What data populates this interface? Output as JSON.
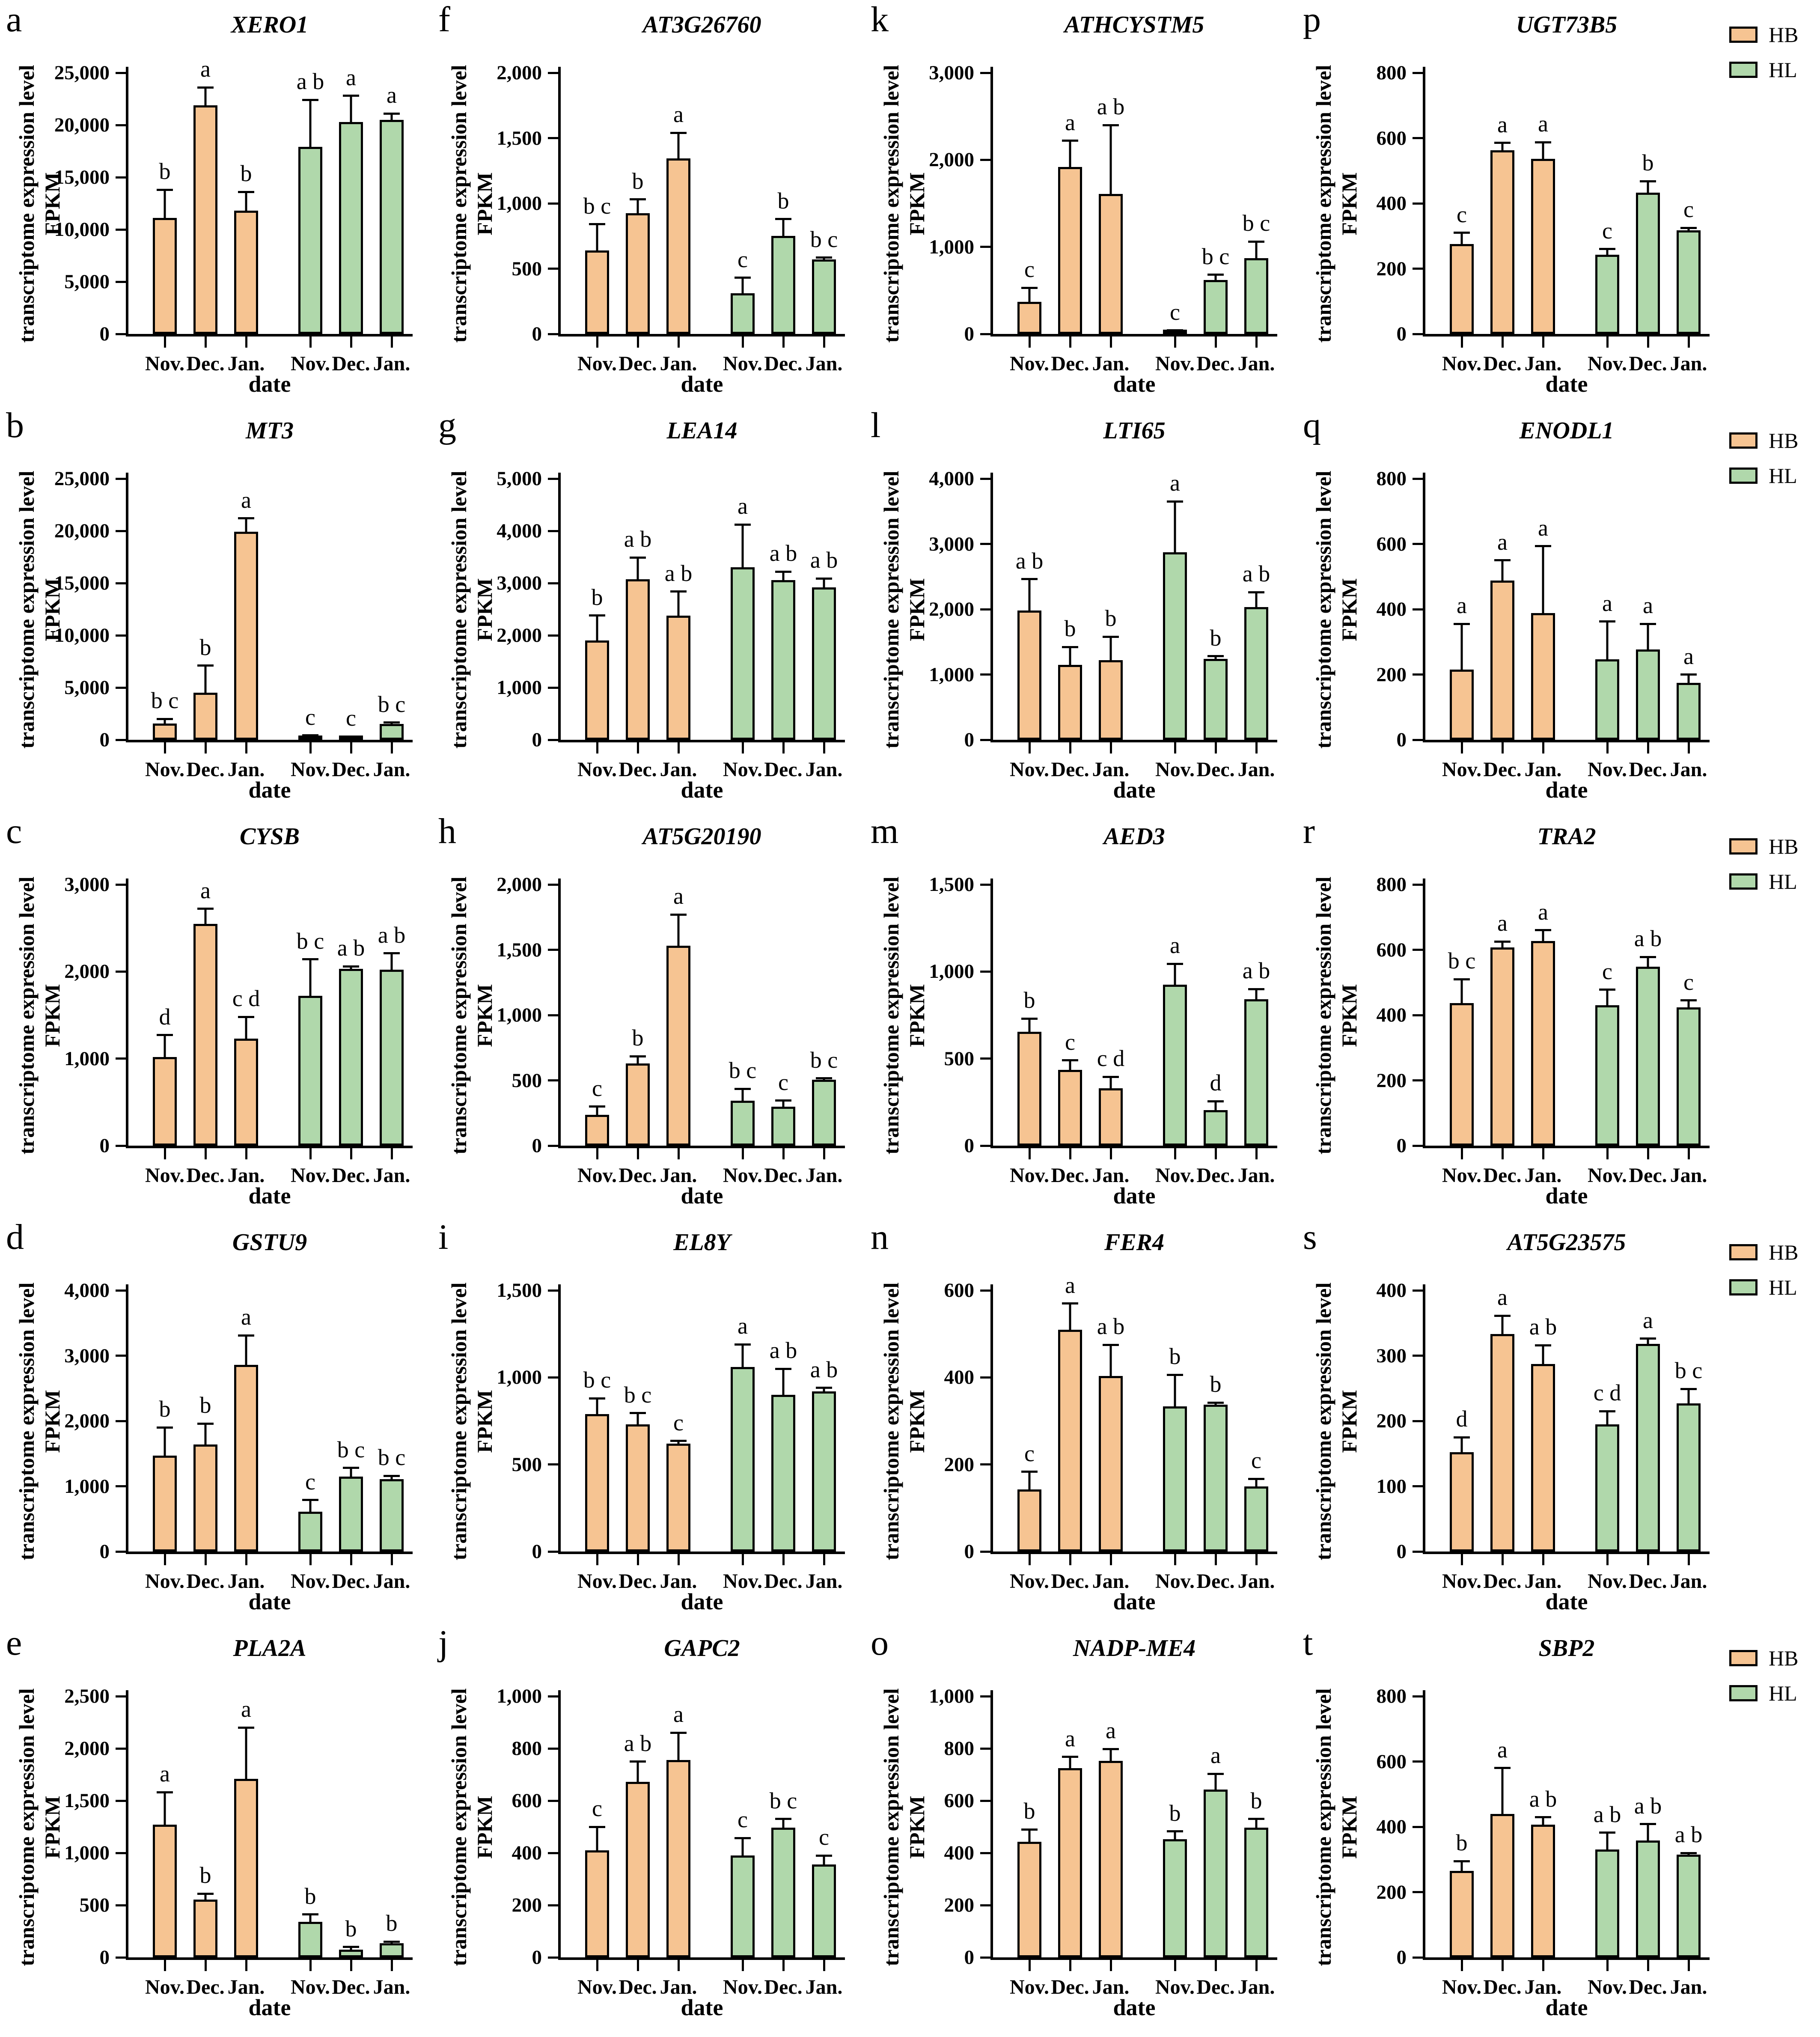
{
  "legend": {
    "items": [
      {
        "label": "HB",
        "color": "#F6C492"
      },
      {
        "label": "HL",
        "color": "#B0D8AB"
      }
    ]
  },
  "axis": {
    "ylabel_line1": "transcriptome expression level",
    "ylabel_line2": "FPKM",
    "xlabel": "date",
    "categories": [
      "Nov.",
      "Dec.",
      "Jan."
    ],
    "x_ticks": [
      "Nov.",
      "Dec.",
      "Jan.",
      "Nov.",
      "Dec.",
      "Jan."
    ]
  },
  "chart_data": [
    {
      "panel": "a",
      "title": "XERO1",
      "type": "bar",
      "ymax": 25000,
      "ystep": 5000,
      "series": [
        {
          "name": "HB",
          "values": [
            11100,
            21900,
            11800
          ],
          "errors": [
            2700,
            1700,
            1800
          ],
          "letters": [
            "b",
            "a",
            "b"
          ]
        },
        {
          "name": "HL",
          "values": [
            17900,
            20300,
            20500
          ],
          "errors": [
            4500,
            2500,
            600
          ],
          "letters": [
            "a b",
            "a",
            "a"
          ]
        }
      ]
    },
    {
      "panel": "b",
      "title": "MT3",
      "type": "bar",
      "ymax": 25000,
      "ystep": 5000,
      "series": [
        {
          "name": "HB",
          "values": [
            1550,
            4500,
            19900
          ],
          "errors": [
            450,
            2600,
            1300
          ],
          "letters": [
            "b c",
            "b",
            "a"
          ]
        },
        {
          "name": "HL",
          "values": [
            350,
            250,
            1500
          ],
          "errors": [
            80,
            60,
            150
          ],
          "letters": [
            "c",
            "c",
            "b c"
          ]
        }
      ]
    },
    {
      "panel": "c",
      "title": "CYSB",
      "type": "bar",
      "ymax": 3000,
      "ystep": 1000,
      "series": [
        {
          "name": "HB",
          "values": [
            1020,
            2550,
            1230
          ],
          "errors": [
            250,
            170,
            250
          ],
          "letters": [
            "d",
            "a",
            "c d"
          ]
        },
        {
          "name": "HL",
          "values": [
            1720,
            2030,
            2020
          ],
          "errors": [
            420,
            30,
            190
          ],
          "letters": [
            "b c",
            "a b",
            "a b"
          ]
        }
      ]
    },
    {
      "panel": "d",
      "title": "GSTU9",
      "type": "bar",
      "ymax": 4000,
      "ystep": 1000,
      "series": [
        {
          "name": "HB",
          "values": [
            1470,
            1640,
            2860
          ],
          "errors": [
            430,
            320,
            450
          ],
          "letters": [
            "b",
            "b",
            "a"
          ]
        },
        {
          "name": "HL",
          "values": [
            610,
            1150,
            1110
          ],
          "errors": [
            180,
            130,
            50
          ],
          "letters": [
            "c",
            "b c",
            "b c"
          ]
        }
      ]
    },
    {
      "panel": "e",
      "title": "PLA2A",
      "type": "bar",
      "ymax": 2500,
      "ystep": 500,
      "series": [
        {
          "name": "HB",
          "values": [
            1270,
            555,
            1710
          ],
          "errors": [
            310,
            55,
            490
          ],
          "letters": [
            "a",
            "b",
            "a"
          ]
        },
        {
          "name": "HL",
          "values": [
            340,
            75,
            135
          ],
          "errors": [
            70,
            25,
            15
          ],
          "letters": [
            "b",
            "b",
            "b"
          ]
        }
      ]
    },
    {
      "panel": "f",
      "title": "AT3G26760",
      "type": "bar",
      "ymax": 2000,
      "ystep": 500,
      "series": [
        {
          "name": "HB",
          "values": [
            640,
            925,
            1345
          ],
          "errors": [
            200,
            105,
            195
          ],
          "letters": [
            "b c",
            "b",
            "a"
          ]
        },
        {
          "name": "HL",
          "values": [
            310,
            750,
            570
          ],
          "errors": [
            120,
            130,
            15
          ],
          "letters": [
            "c",
            "b",
            "b c"
          ]
        }
      ]
    },
    {
      "panel": "g",
      "title": "LEA14",
      "type": "bar",
      "ymax": 5000,
      "ystep": 1000,
      "series": [
        {
          "name": "HB",
          "values": [
            1900,
            3070,
            2380
          ],
          "errors": [
            480,
            420,
            460
          ],
          "letters": [
            "b",
            "a b",
            "a b"
          ]
        },
        {
          "name": "HL",
          "values": [
            3300,
            3060,
            2920
          ],
          "errors": [
            820,
            160,
            170
          ],
          "letters": [
            "a",
            "a b",
            "a b"
          ]
        }
      ]
    },
    {
      "panel": "h",
      "title": "AT5G20190",
      "type": "bar",
      "ymax": 2000,
      "ystep": 500,
      "series": [
        {
          "name": "HB",
          "values": [
            235,
            630,
            1530
          ],
          "errors": [
            65,
            55,
            240
          ],
          "letters": [
            "c",
            "b",
            "a"
          ]
        },
        {
          "name": "HL",
          "values": [
            345,
            300,
            505
          ],
          "errors": [
            90,
            45,
            10
          ],
          "letters": [
            "b c",
            "c",
            "b c"
          ]
        }
      ]
    },
    {
      "panel": "i",
      "title": "EL8Y",
      "type": "bar",
      "ymax": 1500,
      "ystep": 500,
      "series": [
        {
          "name": "HB",
          "values": [
            790,
            730,
            620
          ],
          "errors": [
            90,
            65,
            15
          ],
          "letters": [
            "b c",
            "b c",
            "c"
          ]
        },
        {
          "name": "HL",
          "values": [
            1060,
            900,
            920
          ],
          "errors": [
            130,
            150,
            20
          ],
          "letters": [
            "a",
            "a b",
            "a b"
          ]
        }
      ]
    },
    {
      "panel": "j",
      "title": "GAPC2",
      "type": "bar",
      "ymax": 1000,
      "ystep": 200,
      "series": [
        {
          "name": "HB",
          "values": [
            410,
            672,
            755
          ],
          "errors": [
            90,
            78,
            105
          ],
          "letters": [
            "c",
            "a b",
            "a"
          ]
        },
        {
          "name": "HL",
          "values": [
            390,
            497,
            355
          ],
          "errors": [
            67,
            33,
            35
          ],
          "letters": [
            "c",
            "b c",
            "c"
          ]
        }
      ]
    },
    {
      "panel": "k",
      "title": "ATHCYSTM5",
      "type": "bar",
      "ymax": 3000,
      "ystep": 1000,
      "series": [
        {
          "name": "HB",
          "values": [
            370,
            1920,
            1610
          ],
          "errors": [
            160,
            300,
            790
          ],
          "letters": [
            "c",
            "a",
            "a b"
          ]
        },
        {
          "name": "HL",
          "values": [
            20,
            620,
            870
          ],
          "errors": [
            20,
            60,
            190
          ],
          "letters": [
            "c",
            "b c",
            "b c"
          ]
        }
      ]
    },
    {
      "panel": "l",
      "title": "LTI65",
      "type": "bar",
      "ymax": 4000,
      "ystep": 1000,
      "series": [
        {
          "name": "HB",
          "values": [
            1980,
            1150,
            1220
          ],
          "errors": [
            480,
            270,
            360
          ],
          "letters": [
            "a b",
            "b",
            "b"
          ]
        },
        {
          "name": "HL",
          "values": [
            2870,
            1240,
            2030
          ],
          "errors": [
            780,
            40,
            230
          ],
          "letters": [
            "a",
            "b",
            "a b"
          ]
        }
      ]
    },
    {
      "panel": "m",
      "title": "AED3",
      "type": "bar",
      "ymax": 1500,
      "ystep": 500,
      "series": [
        {
          "name": "HB",
          "values": [
            655,
            435,
            330
          ],
          "errors": [
            75,
            55,
            65
          ],
          "letters": [
            "b",
            "c",
            "c d"
          ]
        },
        {
          "name": "HL",
          "values": [
            925,
            205,
            840
          ],
          "errors": [
            120,
            50,
            60
          ],
          "letters": [
            "a",
            "d",
            "a b"
          ]
        }
      ]
    },
    {
      "panel": "n",
      "title": "FER4",
      "type": "bar",
      "ymax": 600,
      "ystep": 200,
      "series": [
        {
          "name": "HB",
          "values": [
            143,
            510,
            403
          ],
          "errors": [
            40,
            60,
            72
          ],
          "letters": [
            "c",
            "a",
            "a b"
          ]
        },
        {
          "name": "HL",
          "values": [
            333,
            337,
            150
          ],
          "errors": [
            73,
            5,
            17
          ],
          "letters": [
            "b",
            "b",
            "c"
          ]
        }
      ]
    },
    {
      "panel": "o",
      "title": "NADP-ME4",
      "type": "bar",
      "ymax": 1000,
      "ystep": 200,
      "series": [
        {
          "name": "HB",
          "values": [
            443,
            725,
            753
          ],
          "errors": [
            47,
            43,
            45
          ],
          "letters": [
            "b",
            "a",
            "a"
          ]
        },
        {
          "name": "HL",
          "values": [
            452,
            643,
            497
          ],
          "errors": [
            30,
            60,
            33
          ],
          "letters": [
            "b",
            "a",
            "b"
          ]
        }
      ]
    },
    {
      "panel": "p",
      "title": "UGT73B5",
      "type": "bar",
      "ymax": 800,
      "ystep": 200,
      "series": [
        {
          "name": "HB",
          "values": [
            275,
            563,
            537
          ],
          "errors": [
            35,
            22,
            50
          ],
          "letters": [
            "c",
            "a",
            "a"
          ]
        },
        {
          "name": "HL",
          "values": [
            243,
            433,
            318
          ],
          "errors": [
            17,
            35,
            7
          ],
          "letters": [
            "c",
            "b",
            "c"
          ]
        }
      ]
    },
    {
      "panel": "q",
      "title": "ENODL1",
      "type": "bar",
      "ymax": 800,
      "ystep": 200,
      "series": [
        {
          "name": "HB",
          "values": [
            215,
            488,
            388
          ],
          "errors": [
            140,
            62,
            205
          ],
          "letters": [
            "a",
            "a",
            "a"
          ]
        },
        {
          "name": "HL",
          "values": [
            247,
            277,
            175
          ],
          "errors": [
            115,
            78,
            25
          ],
          "letters": [
            "a",
            "a",
            "a"
          ]
        }
      ]
    },
    {
      "panel": "r",
      "title": "TRA2",
      "type": "bar",
      "ymax": 800,
      "ystep": 200,
      "series": [
        {
          "name": "HB",
          "values": [
            437,
            607,
            627
          ],
          "errors": [
            73,
            18,
            33
          ],
          "letters": [
            "b c",
            "a",
            "a"
          ]
        },
        {
          "name": "HL",
          "values": [
            430,
            548,
            423
          ],
          "errors": [
            48,
            30,
            22
          ],
          "letters": [
            "c",
            "a b",
            "c"
          ]
        }
      ]
    },
    {
      "panel": "s",
      "title": "AT5G23575",
      "type": "bar",
      "ymax": 400,
      "ystep": 100,
      "series": [
        {
          "name": "HB",
          "values": [
            152,
            333,
            287
          ],
          "errors": [
            23,
            28,
            29
          ],
          "letters": [
            "d",
            "a",
            "a b"
          ]
        },
        {
          "name": "HL",
          "values": [
            195,
            318,
            227
          ],
          "errors": [
            20,
            8,
            22
          ],
          "letters": [
            "c d",
            "a",
            "b c"
          ]
        }
      ]
    },
    {
      "panel": "t",
      "title": "SBP2",
      "type": "bar",
      "ymax": 800,
      "ystep": 200,
      "series": [
        {
          "name": "HB",
          "values": [
            265,
            440,
            407
          ],
          "errors": [
            30,
            140,
            22
          ],
          "letters": [
            "b",
            "a",
            "a b"
          ]
        },
        {
          "name": "HL",
          "values": [
            330,
            358,
            315
          ],
          "errors": [
            52,
            50,
            5
          ],
          "letters": [
            "a b",
            "a b",
            "a b"
          ]
        }
      ]
    }
  ]
}
